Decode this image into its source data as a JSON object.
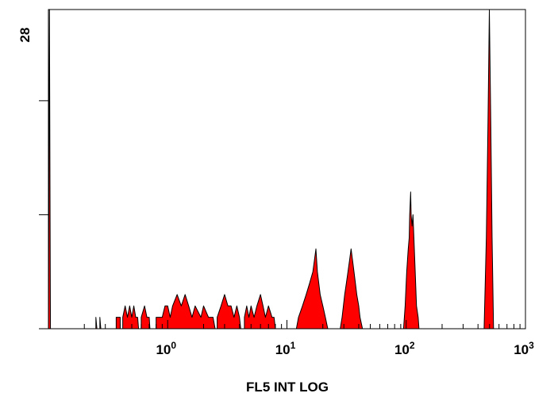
{
  "chart_data": {
    "type": "area",
    "title": "",
    "xlabel": "FL5 INT LOG",
    "ylabel": "",
    "x_scale": "log",
    "xlim": [
      0.1,
      1000
    ],
    "ylim": [
      0,
      28
    ],
    "x_ticks": [
      {
        "base": "10",
        "exp": "0",
        "value": 1
      },
      {
        "base": "10",
        "exp": "1",
        "value": 10
      },
      {
        "base": "10",
        "exp": "2",
        "value": 100
      },
      {
        "base": "10",
        "exp": "3",
        "value": 1000
      }
    ],
    "y_ticks": [
      0,
      10,
      20
    ],
    "y_max_label": "28",
    "grid": false,
    "fill_color": "#ff0000",
    "edge_color": "#000000",
    "series": [
      {
        "points": [
          [
            0.1,
            0
          ],
          [
            0.102,
            28
          ],
          [
            0.104,
            0
          ],
          [
            0.25,
            0
          ],
          [
            0.25,
            1
          ],
          [
            0.255,
            0
          ],
          [
            0.27,
            0
          ],
          [
            0.27,
            1
          ],
          [
            0.275,
            0
          ],
          [
            0.37,
            0
          ],
          [
            0.37,
            1
          ],
          [
            0.4,
            1
          ],
          [
            0.4,
            0
          ],
          [
            0.42,
            0
          ],
          [
            0.42,
            1
          ],
          [
            0.44,
            2
          ],
          [
            0.46,
            1
          ],
          [
            0.48,
            2
          ],
          [
            0.5,
            1
          ],
          [
            0.52,
            2
          ],
          [
            0.54,
            1
          ],
          [
            0.56,
            1
          ],
          [
            0.57,
            0
          ],
          [
            0.6,
            0
          ],
          [
            0.6,
            1
          ],
          [
            0.64,
            2
          ],
          [
            0.67,
            1
          ],
          [
            0.7,
            1
          ],
          [
            0.71,
            0
          ],
          [
            0.8,
            0
          ],
          [
            0.8,
            1
          ],
          [
            0.9,
            1
          ],
          [
            0.95,
            2
          ],
          [
            1.0,
            2
          ],
          [
            1.05,
            1
          ],
          [
            1.1,
            2
          ],
          [
            1.2,
            3
          ],
          [
            1.3,
            2
          ],
          [
            1.4,
            3
          ],
          [
            1.5,
            2
          ],
          [
            1.6,
            1
          ],
          [
            1.7,
            2
          ],
          [
            1.9,
            1
          ],
          [
            2.0,
            2
          ],
          [
            2.2,
            1
          ],
          [
            2.4,
            1
          ],
          [
            2.5,
            0
          ],
          [
            2.6,
            0
          ],
          [
            2.6,
            1
          ],
          [
            2.8,
            2
          ],
          [
            3.0,
            3
          ],
          [
            3.2,
            2
          ],
          [
            3.4,
            2
          ],
          [
            3.6,
            1
          ],
          [
            3.8,
            2
          ],
          [
            4.0,
            1
          ],
          [
            4.1,
            0
          ],
          [
            4.4,
            0
          ],
          [
            4.4,
            1
          ],
          [
            4.6,
            2
          ],
          [
            4.8,
            1
          ],
          [
            5.0,
            2
          ],
          [
            5.3,
            1
          ],
          [
            5.6,
            2
          ],
          [
            6.0,
            3
          ],
          [
            6.3,
            2
          ],
          [
            6.6,
            1
          ],
          [
            7.0,
            2
          ],
          [
            7.5,
            1
          ],
          [
            7.8,
            1
          ],
          [
            8.0,
            0
          ],
          [
            12.0,
            0
          ],
          [
            12.5,
            1
          ],
          [
            13.5,
            2
          ],
          [
            14.5,
            3
          ],
          [
            15.5,
            4
          ],
          [
            16.5,
            5
          ],
          [
            17.0,
            6
          ],
          [
            17.5,
            7
          ],
          [
            18.0,
            5
          ],
          [
            19.0,
            3
          ],
          [
            20.0,
            2
          ],
          [
            21.0,
            1
          ],
          [
            22.0,
            0
          ],
          [
            28.0,
            0
          ],
          [
            29.0,
            1
          ],
          [
            30.5,
            3
          ],
          [
            31.5,
            4
          ],
          [
            32.5,
            5
          ],
          [
            33.5,
            6
          ],
          [
            34.5,
            7
          ],
          [
            35.5,
            6
          ],
          [
            36.5,
            5
          ],
          [
            37.5,
            4
          ],
          [
            38.5,
            3
          ],
          [
            40.0,
            2
          ],
          [
            41.0,
            1
          ],
          [
            43.0,
            0
          ],
          [
            95.0,
            0
          ],
          [
            98.0,
            2
          ],
          [
            101.0,
            5
          ],
          [
            104.0,
            7
          ],
          [
            106.0,
            8
          ],
          [
            107.0,
            10
          ],
          [
            109.0,
            12
          ],
          [
            110.0,
            10
          ],
          [
            112.0,
            9
          ],
          [
            114.0,
            10
          ],
          [
            116.0,
            8
          ],
          [
            119.0,
            5
          ],
          [
            122.0,
            2
          ],
          [
            126.0,
            1
          ],
          [
            128.0,
            0
          ],
          [
            450.0,
            0
          ],
          [
            470.0,
            8
          ],
          [
            485.0,
            18
          ],
          [
            498.0,
            28
          ],
          [
            512.0,
            18
          ],
          [
            525.0,
            8
          ],
          [
            540.0,
            0
          ],
          [
            1000,
            0
          ]
        ]
      }
    ]
  }
}
